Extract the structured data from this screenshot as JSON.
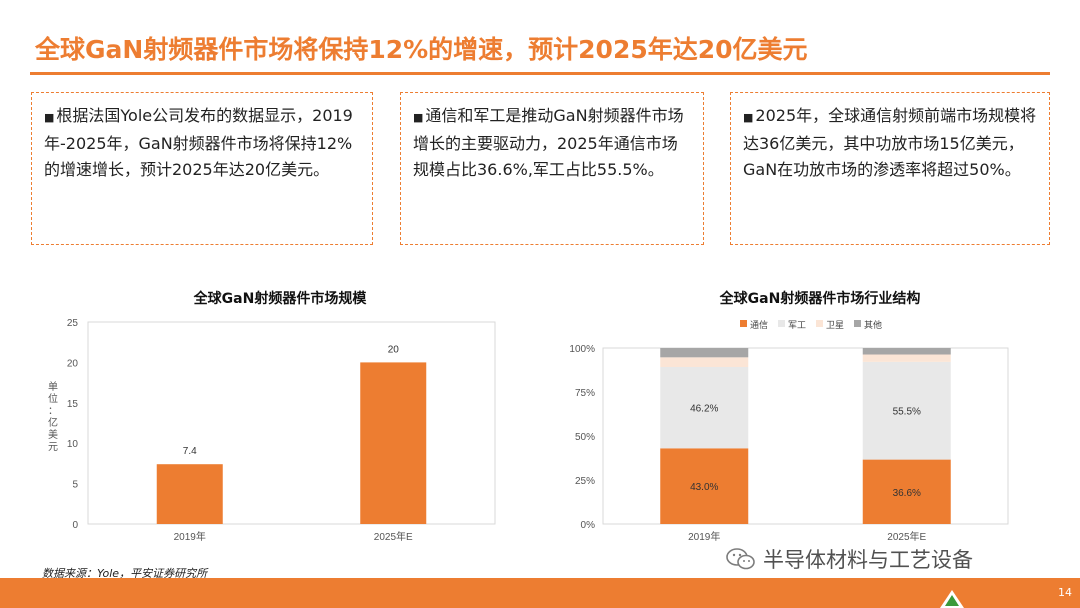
{
  "header": {
    "title": "全球GaN射频器件市场将保持12%的增速，预计2025年达20亿美元"
  },
  "boxes": [
    {
      "bullet": "■",
      "text": "根据法国Yole公司发布的数据显示，2019年-2025年，GaN射频器件市场将保持12%的增速增长，预计2025年达20亿美元。"
    },
    {
      "bullet": "■",
      "text": "通信和军工是推动GaN射频器件市场增长的主要驱动力，2025年通信市场规模占比36.6%,军工占比55.5%。"
    },
    {
      "bullet": "■",
      "text": "2025年，全球通信射频前端市场规模将达36亿美元，其中功放市场15亿美元，GaN在功放市场的渗透率将超过50%。"
    }
  ],
  "chart1_title": "全球GaN射频器件市场规模",
  "chart2_title": "全球GaN射频器件市场行业结构",
  "source": "数据来源：Yole，平安证券研究所",
  "watermark": "半导体材料与工艺设备",
  "page_number": "14",
  "colors": {
    "accent": "#ED7D31",
    "military": "#E8E8E8",
    "satellite": "#FBE5D6",
    "other": "#A6A6A6"
  },
  "icons": {
    "logo": "company-logo-icon",
    "watermark": "wechat-icon"
  },
  "chart_data": [
    {
      "type": "bar",
      "title": "全球GaN射频器件市场规模",
      "categories": [
        "2019年",
        "2025年E"
      ],
      "values": [
        7.4,
        20
      ],
      "data_labels": [
        "7.4",
        "20"
      ],
      "ylabel": "单位：亿美元",
      "ylim": [
        0,
        25
      ],
      "yticks": [
        0,
        5,
        10,
        15,
        20,
        25
      ],
      "grid": false
    },
    {
      "type": "bar",
      "stacked": true,
      "percent": true,
      "title": "全球GaN射频器件市场行业结构",
      "categories": [
        "2019年",
        "2025年E"
      ],
      "legend": "top",
      "ylim": [
        0,
        100
      ],
      "yticks": [
        "0%",
        "25%",
        "50%",
        "75%",
        "100%"
      ],
      "grid": false,
      "series": [
        {
          "name": "通信",
          "values": [
            43.0,
            36.6
          ],
          "labels": [
            "43.0%",
            "36.6%"
          ],
          "color": "#ED7D31"
        },
        {
          "name": "军工",
          "values": [
            46.2,
            55.5
          ],
          "labels": [
            "46.2%",
            "55.5%"
          ],
          "color": "#E8E8E8"
        },
        {
          "name": "卫星",
          "values": [
            5.5,
            4.2
          ],
          "color": "#FBE5D6"
        },
        {
          "name": "其他",
          "values": [
            5.3,
            3.7
          ],
          "color": "#A6A6A6"
        }
      ]
    }
  ]
}
